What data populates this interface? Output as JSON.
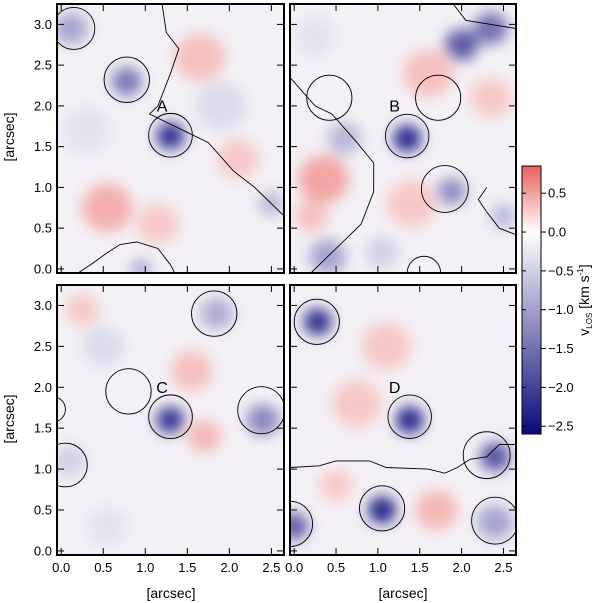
{
  "chart_data": {
    "type": "heatmap",
    "title": "",
    "xlabel": "[arcsec]",
    "ylabel": "[arcsec]",
    "xlim": [
      -0.05,
      2.65
    ],
    "ylim": [
      -0.05,
      3.25
    ],
    "x_ticks": [
      0.0,
      0.5,
      1.0,
      1.5,
      2.0,
      2.5
    ],
    "x_tick_labels": [
      "0.0",
      "0.5",
      "1.0",
      "1.5",
      "2.0",
      "2.5"
    ],
    "y_ticks": [
      0.0,
      0.5,
      1.0,
      1.5,
      2.0,
      2.5,
      3.0
    ],
    "y_tick_labels": [
      "0.0",
      "0.5",
      "1.0",
      "1.5",
      "2.0",
      "2.5",
      "3.0"
    ],
    "colorbar": {
      "label": "v",
      "label_sub": "LOS",
      "units": "[km s",
      "units_sup": "-1",
      "units_close": "]",
      "range": [
        -2.6,
        0.85
      ],
      "ticks": [
        0.5,
        0.0,
        -0.5,
        -1.0,
        -1.5,
        -2.0,
        -2.5
      ],
      "tick_labels": [
        "0.5",
        "0.0",
        "−0.5",
        "−1.0",
        "−1.5",
        "−2.0",
        "−2.5"
      ],
      "colors": {
        "positive": "#e8605c",
        "zero": "#ffffff",
        "negative": "#0a0a7a"
      }
    },
    "panels": [
      {
        "label": "A",
        "label_pos": [
          1.2,
          1.93
        ],
        "circles": [
          [
            0.15,
            2.95,
            0.25
          ],
          [
            0.78,
            2.32,
            0.27
          ],
          [
            1.3,
            1.64,
            0.26
          ]
        ],
        "blobs": [
          {
            "x": 1.3,
            "y": 1.63,
            "v": -2.3,
            "r": 0.17
          },
          {
            "x": 0.78,
            "y": 2.3,
            "v": -1.5,
            "r": 0.18
          },
          {
            "x": 0.12,
            "y": 2.95,
            "v": -1.0,
            "r": 0.2
          },
          {
            "x": 2.5,
            "y": 0.8,
            "v": -0.8,
            "r": 0.15
          },
          {
            "x": 0.95,
            "y": 0.0,
            "v": -1.0,
            "r": 0.12
          },
          {
            "x": 1.9,
            "y": 2.0,
            "v": -0.4,
            "r": 0.3
          },
          {
            "x": 0.55,
            "y": 0.75,
            "v": 0.45,
            "r": 0.3
          },
          {
            "x": 1.65,
            "y": 2.6,
            "v": 0.35,
            "r": 0.3
          },
          {
            "x": 1.15,
            "y": 0.55,
            "v": 0.3,
            "r": 0.25
          },
          {
            "x": 2.1,
            "y": 1.35,
            "v": 0.3,
            "r": 0.25
          },
          {
            "x": 0.3,
            "y": 1.7,
            "v": -0.3,
            "r": 0.3
          }
        ],
        "contours": [
          [
            [
              1.2,
              3.25
            ],
            [
              1.25,
              2.9
            ],
            [
              1.4,
              2.7
            ],
            [
              1.3,
              2.4
            ],
            [
              1.15,
              2.0
            ],
            [
              1.05,
              1.9
            ],
            [
              1.45,
              1.7
            ],
            [
              1.75,
              1.55
            ],
            [
              2.05,
              1.2
            ],
            [
              2.3,
              1.0
            ],
            [
              2.65,
              0.65
            ]
          ],
          [
            [
              0.2,
              -0.05
            ],
            [
              0.35,
              0.05
            ],
            [
              0.55,
              0.2
            ],
            [
              0.7,
              0.3
            ],
            [
              0.9,
              0.33
            ],
            [
              1.15,
              0.25
            ],
            [
              1.3,
              0.05
            ],
            [
              1.35,
              -0.05
            ]
          ]
        ]
      },
      {
        "label": "B",
        "label_pos": [
          1.2,
          1.93
        ],
        "circles": [
          [
            0.42,
            2.1,
            0.27
          ],
          [
            1.35,
            1.63,
            0.26
          ],
          [
            1.72,
            2.1,
            0.27
          ],
          [
            1.8,
            0.98,
            0.28
          ],
          [
            1.55,
            -0.05,
            0.2
          ]
        ],
        "blobs": [
          {
            "x": 1.35,
            "y": 1.6,
            "v": -2.4,
            "r": 0.17
          },
          {
            "x": 2.0,
            "y": 2.75,
            "v": -1.8,
            "r": 0.2
          },
          {
            "x": 2.35,
            "y": 2.95,
            "v": -1.6,
            "r": 0.2
          },
          {
            "x": 1.88,
            "y": 0.95,
            "v": -1.3,
            "r": 0.17
          },
          {
            "x": 0.4,
            "y": 0.15,
            "v": -1.0,
            "r": 0.22
          },
          {
            "x": 0.6,
            "y": 1.6,
            "v": -0.8,
            "r": 0.2
          },
          {
            "x": 2.5,
            "y": 0.65,
            "v": -0.8,
            "r": 0.15
          },
          {
            "x": 1.05,
            "y": 0.2,
            "v": -0.5,
            "r": 0.2
          },
          {
            "x": 0.25,
            "y": 2.85,
            "v": -0.3,
            "r": 0.25
          },
          {
            "x": 0.35,
            "y": 1.1,
            "v": 0.5,
            "r": 0.3
          },
          {
            "x": 1.6,
            "y": 2.4,
            "v": 0.35,
            "r": 0.3
          },
          {
            "x": 2.35,
            "y": 2.1,
            "v": 0.3,
            "r": 0.25
          },
          {
            "x": 1.4,
            "y": 0.8,
            "v": 0.3,
            "r": 0.3
          },
          {
            "x": 0.2,
            "y": 0.65,
            "v": 0.35,
            "r": 0.2
          }
        ],
        "contours": [
          [
            [
              -0.05,
              2.35
            ],
            [
              0.25,
              2.0
            ],
            [
              0.45,
              1.9
            ],
            [
              0.75,
              1.55
            ],
            [
              0.95,
              1.3
            ],
            [
              0.95,
              0.95
            ],
            [
              0.8,
              0.55
            ],
            [
              0.6,
              0.35
            ],
            [
              0.3,
              0.05
            ],
            [
              0.2,
              -0.05
            ]
          ],
          [
            [
              1.9,
              3.25
            ],
            [
              2.05,
              3.05
            ],
            [
              2.35,
              3.0
            ],
            [
              2.65,
              2.95
            ]
          ],
          [
            [
              2.3,
              1.0
            ],
            [
              2.2,
              0.85
            ],
            [
              2.3,
              0.7
            ],
            [
              2.45,
              0.5
            ],
            [
              2.65,
              0.42
            ]
          ]
        ]
      },
      {
        "label": "C",
        "label_pos": [
          1.2,
          1.93
        ],
        "circles": [
          [
            0.8,
            1.95,
            0.27
          ],
          [
            1.3,
            1.64,
            0.26
          ],
          [
            1.82,
            2.9,
            0.27
          ],
          [
            2.38,
            1.72,
            0.28
          ],
          [
            0.05,
            1.05,
            0.26
          ],
          [
            -0.1,
            1.73,
            0.15
          ]
        ],
        "blobs": [
          {
            "x": 1.3,
            "y": 1.6,
            "v": -2.2,
            "r": 0.17
          },
          {
            "x": 2.4,
            "y": 1.6,
            "v": -1.3,
            "r": 0.2
          },
          {
            "x": 1.85,
            "y": 2.9,
            "v": -0.9,
            "r": 0.2
          },
          {
            "x": 0.1,
            "y": 1.1,
            "v": -0.5,
            "r": 0.2
          },
          {
            "x": 0.5,
            "y": 2.5,
            "v": -0.4,
            "r": 0.25
          },
          {
            "x": 1.7,
            "y": 1.4,
            "v": 0.4,
            "r": 0.2
          },
          {
            "x": 1.55,
            "y": 2.2,
            "v": 0.35,
            "r": 0.25
          },
          {
            "x": 0.25,
            "y": 2.95,
            "v": 0.3,
            "r": 0.2
          },
          {
            "x": 0.55,
            "y": 0.3,
            "v": -0.3,
            "r": 0.25
          }
        ],
        "contours": []
      },
      {
        "label": "D",
        "label_pos": [
          1.2,
          1.93
        ],
        "circles": [
          [
            0.27,
            2.8,
            0.27
          ],
          [
            1.38,
            1.64,
            0.26
          ],
          [
            1.05,
            0.52,
            0.27
          ],
          [
            2.3,
            1.17,
            0.28
          ],
          [
            2.4,
            0.37,
            0.28
          ],
          [
            -0.05,
            0.33,
            0.27
          ]
        ],
        "blobs": [
          {
            "x": 0.28,
            "y": 2.8,
            "v": -2.3,
            "r": 0.17
          },
          {
            "x": 1.38,
            "y": 1.6,
            "v": -2.4,
            "r": 0.17
          },
          {
            "x": 1.05,
            "y": 0.5,
            "v": -2.5,
            "r": 0.17
          },
          {
            "x": 2.4,
            "y": 1.15,
            "v": -1.9,
            "r": 0.18
          },
          {
            "x": 0.0,
            "y": 0.3,
            "v": -1.8,
            "r": 0.17
          },
          {
            "x": 2.4,
            "y": 0.35,
            "v": -1.0,
            "r": 0.22
          },
          {
            "x": 0.75,
            "y": 1.8,
            "v": 0.3,
            "r": 0.3
          },
          {
            "x": 1.1,
            "y": 2.5,
            "v": 0.3,
            "r": 0.3
          },
          {
            "x": 1.7,
            "y": 0.5,
            "v": 0.4,
            "r": 0.25
          },
          {
            "x": 0.5,
            "y": 0.8,
            "v": 0.3,
            "r": 0.2
          }
        ],
        "contours": [
          [
            [
              -0.05,
              1.02
            ],
            [
              0.3,
              1.04
            ],
            [
              0.5,
              1.1
            ],
            [
              0.9,
              1.1
            ],
            [
              1.1,
              1.02
            ],
            [
              1.6,
              1.0
            ],
            [
              1.8,
              0.95
            ],
            [
              1.95,
              1.02
            ],
            [
              2.1,
              1.12
            ],
            [
              2.3,
              1.15
            ],
            [
              2.45,
              1.3
            ],
            [
              2.65,
              1.3
            ]
          ]
        ]
      }
    ]
  }
}
